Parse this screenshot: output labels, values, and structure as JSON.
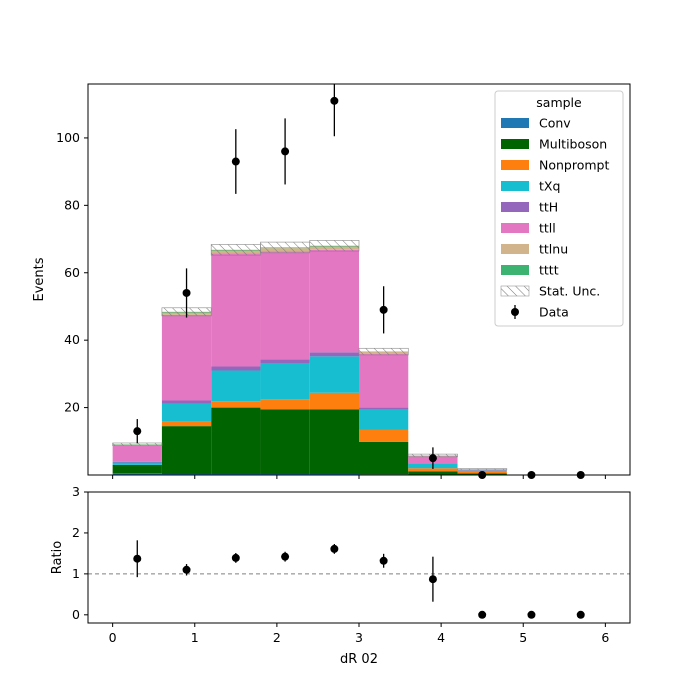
{
  "chart_data": [
    {
      "type": "bar",
      "stacked": true,
      "xlabel": "",
      "ylabel": "Events",
      "xlim": [
        -0.3,
        6.3
      ],
      "ylim": [
        0,
        116
      ],
      "yticks": [
        20,
        40,
        60,
        80,
        100
      ],
      "bin_edges": [
        0.0,
        0.6,
        1.2,
        1.8,
        2.4,
        3.0,
        3.6,
        4.2,
        4.8,
        5.4,
        6.0
      ],
      "series": [
        {
          "name": "Conv",
          "color": "#1f77b4",
          "values": [
            0.5,
            0.3,
            0.3,
            0.3,
            0.3,
            0.2,
            0.1,
            0.0,
            0.1,
            0.0
          ]
        },
        {
          "name": "Multiboson",
          "color": "#006400",
          "values": [
            2.5,
            14.2,
            19.7,
            19.2,
            19.2,
            9.6,
            1.0,
            0.5,
            0.0,
            0.0
          ]
        },
        {
          "name": "Nonprompt",
          "color": "#ff7f0e",
          "values": [
            0.0,
            1.5,
            1.9,
            3.0,
            4.9,
            3.7,
            0.9,
            0.5,
            0.0,
            0.0
          ]
        },
        {
          "name": "tXq",
          "color": "#17becf",
          "values": [
            0.7,
            5.1,
            9.1,
            10.6,
            10.8,
            5.9,
            1.3,
            0.3,
            0.0,
            0.0
          ]
        },
        {
          "name": "ttH",
          "color": "#9467bd",
          "values": [
            0.2,
            1.0,
            1.2,
            1.2,
            1.2,
            0.6,
            0.1,
            0.0,
            0.0,
            0.0
          ]
        },
        {
          "name": "ttll",
          "color": "#e377c2",
          "values": [
            4.8,
            25.4,
            33.5,
            32.0,
            30.4,
            16.0,
            2.2,
            0.3,
            0.0,
            0.0
          ]
        },
        {
          "name": "ttlnu",
          "color": "#d2b48c",
          "values": [
            0.3,
            0.7,
            0.9,
            1.0,
            1.0,
            0.5,
            0.2,
            0.1,
            0.0,
            0.0
          ]
        },
        {
          "name": "tttt",
          "color": "#3cb371",
          "values": [
            0.1,
            0.2,
            0.2,
            0.2,
            0.2,
            0.1,
            0.0,
            0.0,
            0.0,
            0.0
          ]
        }
      ],
      "stat_unc": [
        0.4,
        1.2,
        1.6,
        1.6,
        1.6,
        1.0,
        0.4,
        0.2,
        0.0,
        0.0
      ],
      "data": {
        "name": "Data",
        "x": [
          0.3,
          0.9,
          1.5,
          2.1,
          2.7,
          3.3,
          3.9,
          4.5,
          5.1,
          5.7
        ],
        "y": [
          13,
          54,
          93,
          96,
          111,
          49,
          5,
          0,
          0,
          0
        ],
        "yerr": [
          3.6,
          7.3,
          9.6,
          9.8,
          10.5,
          7.0,
          3.2,
          0,
          0,
          0
        ]
      },
      "legend": {
        "title": "sample",
        "placement": "top-right",
        "entries": [
          "Conv",
          "Multiboson",
          "Nonprompt",
          "tXq",
          "ttH",
          "ttll",
          "ttlnu",
          "tttt",
          "Stat. Unc.",
          "Data"
        ]
      }
    },
    {
      "type": "scatter",
      "xlabel": "dR 02",
      "ylabel": "Ratio",
      "xlim": [
        -0.3,
        6.3
      ],
      "ylim": [
        -0.2,
        3
      ],
      "xticks": [
        0,
        1,
        2,
        3,
        4,
        5,
        6
      ],
      "yticks": [
        0,
        1,
        2,
        3
      ],
      "reference_line": 1,
      "x": [
        0.3,
        0.9,
        1.5,
        2.1,
        2.7,
        3.3,
        3.9,
        4.5,
        5.1,
        5.7
      ],
      "y": [
        1.37,
        1.1,
        1.39,
        1.42,
        1.61,
        1.32,
        0.87,
        0,
        0,
        0
      ],
      "yerr": [
        0.45,
        0.14,
        0.12,
        0.12,
        0.12,
        0.17,
        0.55,
        0,
        0,
        0
      ]
    }
  ]
}
